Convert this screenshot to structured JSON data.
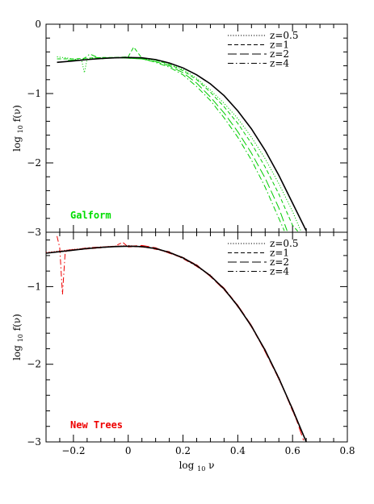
{
  "chart_data": [
    {
      "type": "line",
      "panel_label": "Galform",
      "panel_label_color": "#00dd00",
      "ylabel": "log 10 f(ν)",
      "ylabel_parts": {
        "main": "log",
        "sub": "10",
        "rest": "f(ν)"
      },
      "xlim": [
        -0.3,
        0.8
      ],
      "ylim": [
        -3,
        0
      ],
      "y_ticks": [
        0,
        -1,
        -2,
        -3
      ],
      "y_tick_labels": [
        "0",
        "−1",
        "−2",
        "−3"
      ],
      "legend_position": "top-right",
      "legend": [
        {
          "label": "z=0.5",
          "style": "dotted"
        },
        {
          "label": "z=1",
          "style": "dashed"
        },
        {
          "label": "z=2",
          "style": "long-dashed"
        },
        {
          "label": "z=4",
          "style": "dash-dot"
        }
      ],
      "model": {
        "name": "analytic",
        "color": "#000000",
        "x": [
          -0.26,
          -0.2,
          -0.15,
          -0.1,
          -0.05,
          0.0,
          0.05,
          0.1,
          0.15,
          0.2,
          0.25,
          0.3,
          0.35,
          0.4,
          0.45,
          0.5,
          0.55,
          0.6,
          0.65
        ],
        "y": [
          -0.55,
          -0.53,
          -0.51,
          -0.495,
          -0.485,
          -0.48,
          -0.485,
          -0.51,
          -0.56,
          -0.63,
          -0.73,
          -0.86,
          -1.03,
          -1.25,
          -1.51,
          -1.82,
          -2.18,
          -2.58,
          -2.98
        ]
      },
      "series": [
        {
          "style": "dotted",
          "color": "#00cc00",
          "x": [
            -0.26,
            -0.2,
            -0.17,
            -0.16,
            -0.15,
            -0.12,
            -0.05,
            0.0,
            0.05,
            0.1,
            0.15,
            0.2,
            0.25,
            0.3,
            0.35,
            0.4,
            0.45,
            0.5,
            0.55,
            0.6,
            0.63
          ],
          "y": [
            -0.47,
            -0.5,
            -0.52,
            -0.7,
            -0.5,
            -0.48,
            -0.49,
            -0.47,
            -0.5,
            -0.52,
            -0.58,
            -0.65,
            -0.78,
            -0.95,
            -1.14,
            -1.36,
            -1.63,
            -1.94,
            -2.3,
            -2.7,
            -2.98
          ]
        },
        {
          "style": "dashed",
          "color": "#00cc00",
          "x": [
            -0.26,
            -0.2,
            -0.15,
            -0.1,
            -0.05,
            0.0,
            0.02,
            0.05,
            0.1,
            0.15,
            0.2,
            0.25,
            0.3,
            0.35,
            0.4,
            0.45,
            0.5,
            0.55,
            0.6,
            0.62
          ],
          "y": [
            -0.5,
            -0.5,
            -0.49,
            -0.48,
            -0.48,
            -0.47,
            -0.33,
            -0.49,
            -0.52,
            -0.58,
            -0.67,
            -0.8,
            -0.98,
            -1.19,
            -1.43,
            -1.72,
            -2.06,
            -2.45,
            -2.9,
            -2.99
          ]
        },
        {
          "style": "long-dashed",
          "color": "#00cc00",
          "x": [
            -0.22,
            -0.15,
            -0.1,
            -0.05,
            0.0,
            0.05,
            0.1,
            0.15,
            0.2,
            0.25,
            0.3,
            0.35,
            0.4,
            0.45,
            0.5,
            0.55,
            0.58
          ],
          "y": [
            -0.52,
            -0.51,
            -0.49,
            -0.48,
            -0.49,
            -0.5,
            -0.54,
            -0.6,
            -0.7,
            -0.85,
            -1.05,
            -1.28,
            -1.55,
            -1.86,
            -2.22,
            -2.65,
            -2.98
          ]
        },
        {
          "style": "dash-dot",
          "color": "#00cc00",
          "x": [
            -0.17,
            -0.14,
            -0.1,
            -0.05,
            0.0,
            0.05,
            0.1,
            0.15,
            0.2,
            0.25,
            0.3,
            0.35,
            0.4,
            0.45,
            0.5,
            0.55,
            0.57
          ],
          "y": [
            -0.52,
            -0.43,
            -0.5,
            -0.48,
            -0.49,
            -0.5,
            -0.55,
            -0.62,
            -0.73,
            -0.9,
            -1.1,
            -1.35,
            -1.63,
            -1.96,
            -2.35,
            -2.8,
            -2.98
          ]
        }
      ]
    },
    {
      "type": "line",
      "panel_label": "New Trees",
      "panel_label_color": "#ee0000",
      "xlabel": "log 10 ν",
      "xlabel_parts": {
        "main": "log",
        "sub": "10",
        "rest": "ν"
      },
      "ylabel": "log 10 f(ν)",
      "ylabel_parts": {
        "main": "log",
        "sub": "10",
        "rest": "f(ν)"
      },
      "xlim": [
        -0.3,
        0.8
      ],
      "ylim": [
        -3,
        -0.3
      ],
      "x_ticks": [
        -0.2,
        0,
        0.2,
        0.4,
        0.6,
        0.8
      ],
      "x_tick_labels": [
        "−0.2",
        "0",
        "0.2",
        "0.4",
        "0.6",
        "0.8"
      ],
      "y_ticks": [
        -1,
        -2,
        -3
      ],
      "y_tick_labels": [
        "−1",
        "−2",
        "−3"
      ],
      "legend_position": "top-right",
      "legend": [
        {
          "label": "z=0.5",
          "style": "dotted"
        },
        {
          "label": "z=1",
          "style": "dashed"
        },
        {
          "label": "z=2",
          "style": "long-dashed"
        },
        {
          "label": "z=4",
          "style": "dash-dot"
        }
      ],
      "model": {
        "name": "analytic",
        "color": "#000000",
        "x": [
          -0.3,
          -0.25,
          -0.2,
          -0.15,
          -0.1,
          -0.05,
          0.0,
          0.05,
          0.1,
          0.15,
          0.2,
          0.25,
          0.3,
          0.35,
          0.4,
          0.45,
          0.5,
          0.55,
          0.6,
          0.65
        ],
        "y": [
          -0.57,
          -0.55,
          -0.53,
          -0.51,
          -0.495,
          -0.485,
          -0.48,
          -0.485,
          -0.51,
          -0.56,
          -0.63,
          -0.73,
          -0.86,
          -1.03,
          -1.25,
          -1.51,
          -1.82,
          -2.18,
          -2.58,
          -3.0
        ]
      },
      "series": [
        {
          "style": "dotted",
          "color": "#ee0000",
          "x": [
            -0.3,
            -0.2,
            -0.1,
            -0.05,
            0.0,
            0.05,
            0.1,
            0.15,
            0.2,
            0.25,
            0.3,
            0.35,
            0.4,
            0.45,
            0.5,
            0.55,
            0.6,
            0.65
          ],
          "y": [
            -0.56,
            -0.52,
            -0.49,
            -0.48,
            -0.47,
            -0.49,
            -0.51,
            -0.57,
            -0.62,
            -0.74,
            -0.85,
            -1.04,
            -1.24,
            -1.52,
            -1.81,
            -2.2,
            -2.57,
            -3.0
          ]
        },
        {
          "style": "dashed",
          "color": "#ee0000",
          "x": [
            -0.25,
            -0.2,
            -0.1,
            -0.05,
            -0.02,
            0.0,
            0.05,
            0.1,
            0.15,
            0.2,
            0.25,
            0.3,
            0.35,
            0.4,
            0.45,
            0.5,
            0.55,
            0.6,
            0.65
          ],
          "y": [
            -0.55,
            -0.53,
            -0.5,
            -0.48,
            -0.43,
            -0.49,
            -0.48,
            -0.52,
            -0.55,
            -0.64,
            -0.72,
            -0.87,
            -1.02,
            -1.26,
            -1.5,
            -1.83,
            -2.17,
            -2.6,
            -2.99
          ]
        },
        {
          "style": "long-dashed",
          "color": "#ee0000",
          "x": [
            -0.22,
            -0.15,
            -0.1,
            -0.05,
            0.0,
            0.05,
            0.1,
            0.15,
            0.2,
            0.25,
            0.3,
            0.35,
            0.4,
            0.45,
            0.5,
            0.55,
            0.6,
            0.64
          ],
          "y": [
            -0.53,
            -0.51,
            -0.5,
            -0.48,
            -0.48,
            -0.47,
            -0.5,
            -0.57,
            -0.63,
            -0.72,
            -0.87,
            -1.04,
            -1.24,
            -1.5,
            -1.84,
            -2.19,
            -2.57,
            -2.98
          ]
        },
        {
          "style": "dash-dot",
          "color": "#ee0000",
          "x": [
            -0.26,
            -0.25,
            -0.24,
            -0.23,
            -0.2,
            -0.15,
            -0.1,
            -0.05,
            0.0,
            0.05,
            0.1,
            0.15,
            0.2,
            0.25,
            0.3,
            0.35,
            0.4,
            0.45,
            0.5,
            0.55,
            0.6,
            0.65
          ],
          "y": [
            -0.35,
            -0.5,
            -1.1,
            -0.55,
            -0.53,
            -0.5,
            -0.49,
            -0.48,
            -0.48,
            -0.49,
            -0.51,
            -0.56,
            -0.64,
            -0.74,
            -0.86,
            -1.02,
            -1.24,
            -1.52,
            -1.83,
            -2.18,
            -2.6,
            -3.0
          ]
        }
      ]
    }
  ]
}
